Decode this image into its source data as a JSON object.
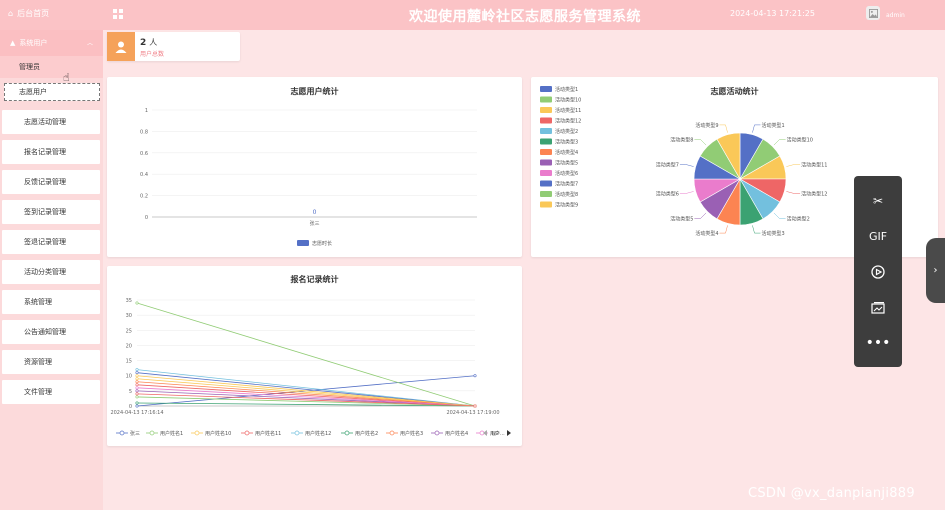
{
  "header": {
    "home_label": "后台首页",
    "title": "欢迎使用麓岭社区志愿服务管理系统",
    "datetime": "2024-04-13 17:21:25",
    "user": "admin"
  },
  "sidebar": {
    "group": "系统用户",
    "sub_items": [
      "管理员",
      "志愿用户"
    ],
    "items": [
      "志愿活动管理",
      "报名记录管理",
      "反馈记录管理",
      "签到记录管理",
      "签退记录管理",
      "活动分类管理",
      "系统管理",
      "公告通知管理",
      "资源管理",
      "文件管理"
    ]
  },
  "stat": {
    "value": "2",
    "unit": "人",
    "label": "用户总数",
    "icon": "user-icon",
    "color": "#f5a25a"
  },
  "chart1": {
    "type": "bar",
    "title": "志愿用户统计",
    "categories": [
      "张三"
    ],
    "values": [
      0
    ],
    "data_label": "0",
    "ylim": [
      0,
      1
    ],
    "yticks": [
      "0",
      "0.2",
      "0.4",
      "0.6",
      "0.8",
      "1"
    ],
    "legend": "志愿时长",
    "color": "#5470c6"
  },
  "chart2": {
    "type": "pie",
    "title": "志愿活动统计",
    "legend": [
      "活动类型1",
      "活动类型10",
      "活动类型11",
      "活动类型12",
      "活动类型2",
      "活动类型3",
      "活动类型4",
      "活动类型5",
      "活动类型6",
      "活动类型7",
      "活动类型8",
      "活动类型9"
    ],
    "colors": [
      "#5470c6",
      "#91cc75",
      "#fac858",
      "#ee6666",
      "#73c0de",
      "#3ba272",
      "#fc8452",
      "#9a60b4",
      "#ea7ccc",
      "#5470c6",
      "#91cc75",
      "#fac858"
    ],
    "values": [
      1,
      1,
      1,
      1,
      1,
      1,
      1,
      1,
      1,
      1,
      1,
      1
    ]
  },
  "chart3": {
    "type": "line",
    "title": "报名记录统计",
    "x": [
      "2024-04-13 17:16:14",
      "2024-04-13 17:19:00"
    ],
    "yticks": [
      "0",
      "5",
      "10",
      "15",
      "20",
      "25",
      "30",
      "35"
    ],
    "ylim": [
      0,
      35
    ],
    "legend": [
      "张三",
      "用户姓名1",
      "用户姓名10",
      "用户姓名11",
      "用户姓名12",
      "用户姓名2",
      "用户姓名3",
      "用户姓名4",
      "用户..."
    ],
    "pager": "1/2",
    "series": [
      {
        "color": "#5470c6",
        "values": [
          0,
          10
        ]
      },
      {
        "color": "#91cc75",
        "values": [
          34,
          0
        ]
      },
      {
        "color": "#fac858",
        "values": [
          9,
          0
        ]
      },
      {
        "color": "#ee6666",
        "values": [
          7,
          0
        ]
      },
      {
        "color": "#73c0de",
        "values": [
          12,
          0
        ]
      },
      {
        "color": "#3ba272",
        "values": [
          1,
          0
        ]
      },
      {
        "color": "#fc8452",
        "values": [
          8,
          0
        ]
      },
      {
        "color": "#9a60b4",
        "values": [
          5,
          0
        ]
      },
      {
        "color": "#ea7ccc",
        "values": [
          6,
          0
        ]
      },
      {
        "color": "#5470c6",
        "values": [
          11,
          0
        ]
      },
      {
        "color": "#91cc75",
        "values": [
          3,
          0
        ]
      },
      {
        "color": "#fac858",
        "values": [
          10,
          0
        ]
      },
      {
        "color": "#ee6666",
        "values": [
          4,
          0
        ]
      }
    ]
  },
  "toolbox": {
    "gif_label": "GIF"
  },
  "watermark": "CSDN @vx_danpianji889"
}
